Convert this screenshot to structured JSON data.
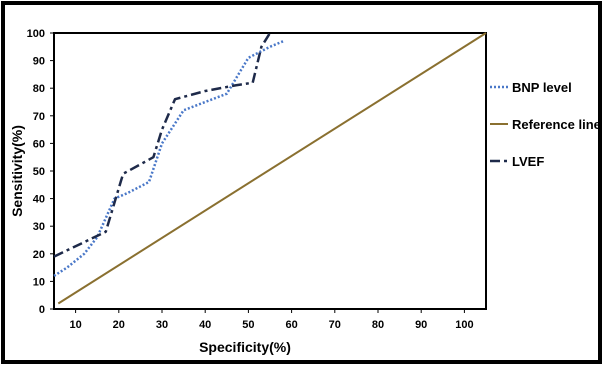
{
  "chart_data": {
    "type": "line",
    "xlabel": "Specificity(%)",
    "ylabel": "Sensitivity(%)",
    "xlim": [
      5,
      105
    ],
    "ylim": [
      0,
      100
    ],
    "x_ticks": [
      10,
      20,
      30,
      40,
      50,
      60,
      70,
      80,
      90,
      100
    ],
    "y_ticks": [
      0,
      10,
      20,
      30,
      40,
      50,
      60,
      70,
      80,
      90,
      100
    ],
    "legend_position": "right",
    "series": [
      {
        "name": "BNP level",
        "style": "dotted",
        "color": "#4a78c8",
        "x": [
          5,
          8,
          12,
          15,
          19,
          22,
          27,
          30,
          35,
          40,
          45,
          50,
          55,
          58
        ],
        "y": [
          12,
          15,
          20,
          26,
          40,
          42,
          46,
          60,
          72,
          75,
          78,
          91,
          95,
          97
        ]
      },
      {
        "name": "Reference line",
        "style": "solid",
        "color": "#8a7030",
        "x": [
          6,
          105
        ],
        "y": [
          2,
          100
        ]
      },
      {
        "name": "LVEF",
        "style": "dashdot",
        "color": "#1e2a4a",
        "x": [
          5,
          9,
          13,
          17,
          21,
          28,
          30,
          33,
          40,
          47,
          51,
          53,
          55
        ],
        "y": [
          19,
          22,
          25,
          28,
          49,
          55,
          65,
          76,
          79,
          81,
          82,
          95,
          100
        ]
      }
    ]
  }
}
